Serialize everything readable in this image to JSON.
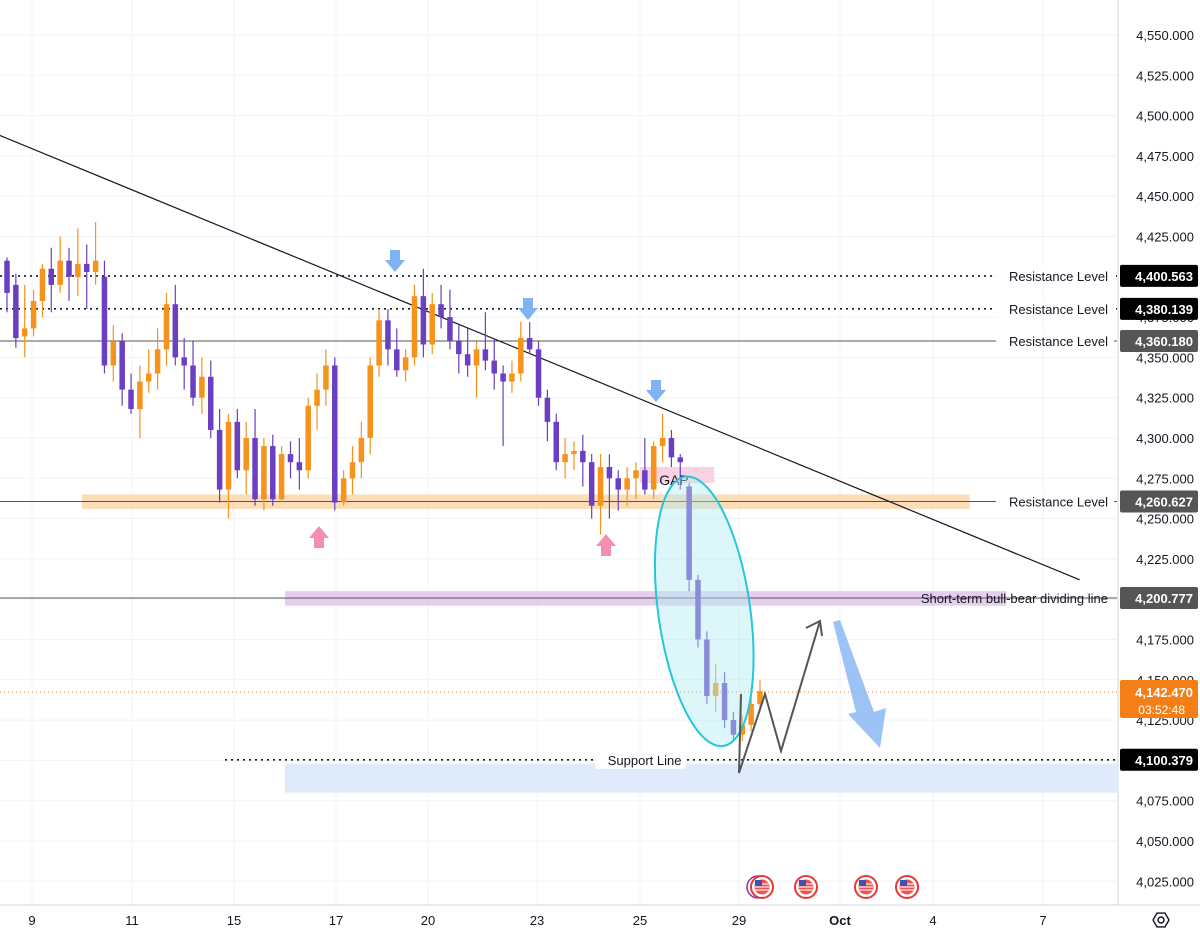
{
  "chart_data": {
    "type": "candlestick",
    "title": "",
    "xlabel": "",
    "ylabel": "",
    "ylim": [
      4010,
      4565
    ],
    "y_ticks": [
      "4,550.000",
      "4,525.000",
      "4,500.000",
      "4,475.000",
      "4,450.000",
      "4,425.000",
      "4,400.000",
      "4,375.000",
      "4,350.000",
      "4,325.000",
      "4,300.000",
      "4,275.000",
      "4,250.000",
      "4,225.000",
      "4,200.000",
      "4,175.000",
      "4,150.000",
      "4,125.000",
      "4,100.000",
      "4,075.000",
      "4,050.000",
      "4,025.000"
    ],
    "y_tick_values": [
      4550,
      4525,
      4500,
      4475,
      4450,
      4425,
      4400,
      4375,
      4350,
      4325,
      4300,
      4275,
      4250,
      4225,
      4200,
      4175,
      4150,
      4125,
      4100,
      4075,
      4050,
      4025
    ],
    "x_ticks": [
      {
        "label": "9",
        "date": "2025-09-09",
        "bold": false
      },
      {
        "label": "11",
        "date": "2025-09-11",
        "bold": false
      },
      {
        "label": "15",
        "date": "2025-09-15",
        "bold": false
      },
      {
        "label": "17",
        "date": "2025-09-17",
        "bold": false
      },
      {
        "label": "20",
        "date": "2025-09-20",
        "bold": false
      },
      {
        "label": "23",
        "date": "2025-09-23",
        "bold": false
      },
      {
        "label": "25",
        "date": "2025-09-25",
        "bold": false
      },
      {
        "label": "29",
        "date": "2025-09-29",
        "bold": false
      },
      {
        "label": "Oct",
        "date": "2025-10-01",
        "bold": true
      },
      {
        "label": "4",
        "date": "2025-10-04",
        "bold": false
      },
      {
        "label": "7",
        "date": "2025-10-07",
        "bold": false
      }
    ],
    "candles_ohlc": [
      [
        4410,
        4412,
        4378,
        4390
      ],
      [
        4395,
        4402,
        4356,
        4362
      ],
      [
        4363,
        4395,
        4350,
        4368
      ],
      [
        4368,
        4392,
        4363,
        4385
      ],
      [
        4385,
        4408,
        4375,
        4405
      ],
      [
        4405,
        4418,
        4378,
        4395
      ],
      [
        4395,
        4425,
        4390,
        4410
      ],
      [
        4410,
        4418,
        4385,
        4400
      ],
      [
        4400,
        4430,
        4388,
        4408
      ],
      [
        4408,
        4420,
        4380,
        4403
      ],
      [
        4403,
        4434,
        4395,
        4410
      ],
      [
        4400,
        4410,
        4340,
        4345
      ],
      [
        4345,
        4370,
        4335,
        4360
      ],
      [
        4360,
        4365,
        4320,
        4330
      ],
      [
        4330,
        4340,
        4315,
        4318
      ],
      [
        4318,
        4345,
        4300,
        4335
      ],
      [
        4335,
        4355,
        4328,
        4340
      ],
      [
        4340,
        4368,
        4330,
        4355
      ],
      [
        4355,
        4390,
        4345,
        4383
      ],
      [
        4383,
        4395,
        4345,
        4350
      ],
      [
        4350,
        4362,
        4330,
        4345
      ],
      [
        4345,
        4360,
        4320,
        4325
      ],
      [
        4325,
        4350,
        4315,
        4338
      ],
      [
        4338,
        4348,
        4300,
        4305
      ],
      [
        4305,
        4318,
        4260,
        4268
      ],
      [
        4268,
        4315,
        4250,
        4310
      ],
      [
        4310,
        4318,
        4275,
        4280
      ],
      [
        4280,
        4310,
        4265,
        4300
      ],
      [
        4300,
        4318,
        4258,
        4262
      ],
      [
        4262,
        4300,
        4255,
        4295
      ],
      [
        4295,
        4302,
        4258,
        4262
      ],
      [
        4262,
        4295,
        4260,
        4290
      ],
      [
        4290,
        4298,
        4275,
        4285
      ],
      [
        4285,
        4300,
        4268,
        4280
      ],
      [
        4280,
        4325,
        4275,
        4320
      ],
      [
        4320,
        4340,
        4305,
        4330
      ],
      [
        4330,
        4355,
        4320,
        4345
      ],
      [
        4345,
        4350,
        4255,
        4260
      ],
      [
        4260,
        4280,
        4258,
        4275
      ],
      [
        4275,
        4295,
        4265,
        4285
      ],
      [
        4285,
        4310,
        4275,
        4300
      ],
      [
        4300,
        4350,
        4290,
        4345
      ],
      [
        4345,
        4380,
        4338,
        4373
      ],
      [
        4373,
        4380,
        4345,
        4355
      ],
      [
        4355,
        4368,
        4338,
        4342
      ],
      [
        4342,
        4355,
        4335,
        4350
      ],
      [
        4350,
        4395,
        4345,
        4388
      ],
      [
        4388,
        4405,
        4350,
        4358
      ],
      [
        4358,
        4390,
        4352,
        4383
      ],
      [
        4383,
        4395,
        4368,
        4375
      ],
      [
        4375,
        4392,
        4355,
        4360
      ],
      [
        4360,
        4370,
        4340,
        4352
      ],
      [
        4352,
        4368,
        4338,
        4345
      ],
      [
        4345,
        4360,
        4325,
        4355
      ],
      [
        4355,
        4378,
        4342,
        4348
      ],
      [
        4348,
        4362,
        4330,
        4340
      ],
      [
        4340,
        4345,
        4295,
        4335
      ],
      [
        4335,
        4348,
        4328,
        4340
      ],
      [
        4340,
        4372,
        4335,
        4362
      ],
      [
        4362,
        4372,
        4352,
        4355
      ],
      [
        4355,
        4360,
        4320,
        4325
      ],
      [
        4325,
        4330,
        4298,
        4310
      ],
      [
        4310,
        4315,
        4280,
        4285
      ],
      [
        4285,
        4300,
        4275,
        4290
      ],
      [
        4290,
        4298,
        4280,
        4292
      ],
      [
        4292,
        4302,
        4270,
        4285
      ],
      [
        4285,
        4290,
        4250,
        4258
      ],
      [
        4258,
        4290,
        4240,
        4282
      ],
      [
        4282,
        4290,
        4250,
        4275
      ],
      [
        4275,
        4280,
        4255,
        4268
      ],
      [
        4268,
        4282,
        4258,
        4275
      ],
      [
        4275,
        4285,
        4262,
        4280
      ],
      [
        4280,
        4300,
        4265,
        4268
      ],
      [
        4268,
        4298,
        4262,
        4295
      ],
      [
        4295,
        4315,
        4285,
        4300
      ],
      [
        4300,
        4305,
        4282,
        4288
      ],
      [
        4288,
        4290,
        4268,
        4285
      ],
      [
        4270,
        4272,
        4205,
        4212
      ],
      [
        4212,
        4215,
        4170,
        4175
      ],
      [
        4175,
        4180,
        4135,
        4140
      ],
      [
        4140,
        4160,
        4130,
        4148
      ],
      [
        4148,
        4155,
        4120,
        4125
      ],
      [
        4125,
        4130,
        4112,
        4116
      ],
      [
        4116,
        4128,
        4112,
        4122
      ],
      [
        4122,
        4145,
        4118,
        4135
      ],
      [
        4135,
        4150,
        4130,
        4143
      ]
    ],
    "dividing_line_start": {
      "date": "2025-09-07",
      "value": 4200.777
    },
    "resistance_levels": [
      {
        "label": "Resistance Level",
        "value": 4400.563,
        "tag": "4,400.563",
        "tag_color": "#000000",
        "style": "dotted"
      },
      {
        "label": "Resistance Level",
        "value": 4380.139,
        "tag": "4,380.139",
        "tag_color": "#000000",
        "style": "dotted"
      },
      {
        "label": "Resistance Level",
        "value": 4360.18,
        "tag": "4,360.180",
        "tag_color": "#555555",
        "style": "solid"
      },
      {
        "label": "Resistance Level",
        "value": 4260.627,
        "tag": "4,260.627",
        "tag_color": "#555555",
        "style": "solid"
      }
    ],
    "dividing_line": {
      "label": "Short-term bull-bear dividing line",
      "value": 4200.777,
      "tag": "4,200.777",
      "tag_color": "#555555"
    },
    "support_line": {
      "label": "Support Line",
      "value": 4100.379,
      "tag": "4,100.379",
      "tag_color": "#000000",
      "style": "dotted"
    },
    "current_price": {
      "value": 4142.47,
      "tag": "4,142.470",
      "countdown": "03:52:48",
      "tag_color": "#f57f17"
    },
    "trendline": {
      "from": {
        "date": "2025-09-07",
        "value": 4505
      },
      "to": {
        "date": "2025-10-08",
        "value": 4212
      }
    },
    "zones": [
      {
        "name": "orange-support-zone",
        "from": "2025-09-10",
        "to": "2025-10-05",
        "low": 4256,
        "high": 4265,
        "color": "#fbd9b0"
      },
      {
        "name": "pink-gap-zone",
        "from": "2025-09-25",
        "to": "2025-09-28",
        "low": 4272,
        "high": 4282,
        "color": "#f8cde0"
      },
      {
        "name": "purple-dividing-zone",
        "from": "2025-09-16",
        "to": "2025-10-06",
        "low": 4196,
        "high": 4205,
        "color": "#e2c8ec"
      },
      {
        "name": "blue-support-zone",
        "from": "2025-09-16",
        "to": "2025-10-10",
        "low": 4080,
        "high": 4098,
        "color": "#dce8fb"
      }
    ],
    "gap_label": "GAP",
    "down_arrow_dates": [
      "2025-09-18",
      "2025-09-22",
      "2025-09-25"
    ],
    "up_arrow_dates": [
      "2025-09-16",
      "2025-09-24"
    ],
    "projection_path": [
      {
        "date": "2025-09-29",
        "value": 4140
      },
      {
        "date": "2025-09-29",
        "value": 4095
      },
      {
        "date": "2025-09-30",
        "value": 4145
      },
      {
        "date": "2025-09-30",
        "value": 4112
      },
      {
        "date": "2025-10-01",
        "value": 4188
      }
    ],
    "big_arrow": {
      "from": {
        "date": "2025-10-01",
        "value": 4190
      },
      "to": {
        "date": "2025-10-02",
        "value": 4112
      }
    },
    "event_icons_dates": [
      "2025-09-29",
      "2025-09-30",
      "2025-10-01",
      "2025-10-02"
    ]
  },
  "icons": {
    "event_icon": "us-flag-event-icon",
    "settings_icon": "gear-icon"
  },
  "colors": {
    "bull": "#f7931a",
    "bear": "#6a3fc1"
  }
}
